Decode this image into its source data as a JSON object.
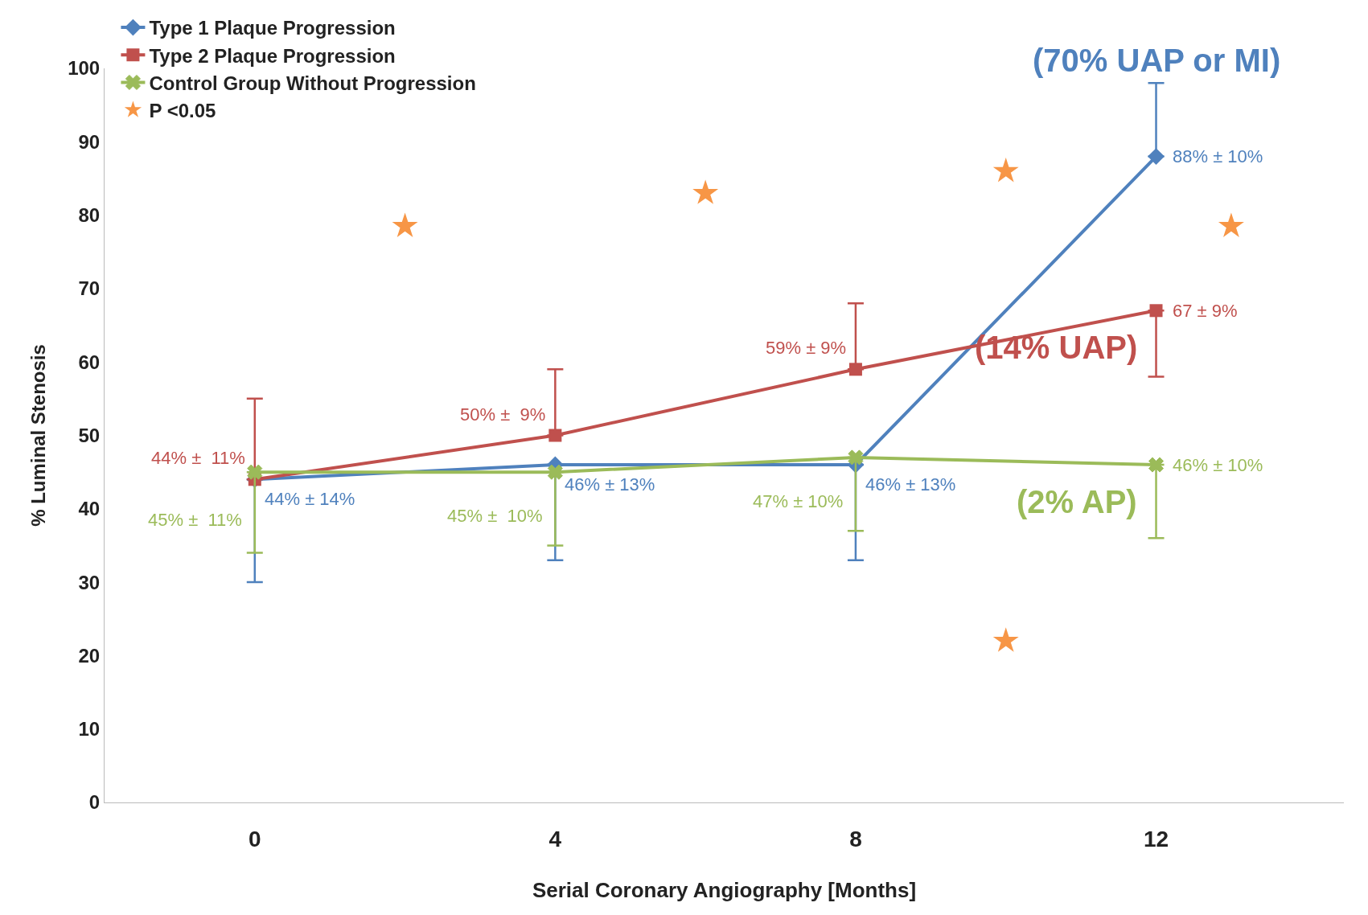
{
  "chart_data": {
    "type": "line",
    "xlabel": "Serial Coronary Angiography [Months]",
    "ylabel": "% Luminal Stenosis",
    "x": [
      0,
      4,
      8,
      12
    ],
    "xlim": [
      -2,
      14.5
    ],
    "xticks": [
      0,
      4,
      8,
      12
    ],
    "ylim": [
      0,
      100
    ],
    "yticks": [
      0,
      10,
      20,
      30,
      40,
      50,
      60,
      70,
      80,
      90,
      100
    ],
    "grid": false,
    "legend": "top left",
    "series": [
      {
        "name": "Type 1 Plaque Progression",
        "color": "#4f81bd",
        "marker": "diamond",
        "values": [
          44,
          46,
          46,
          88
        ],
        "errors": [
          [
            30,
            44
          ],
          [
            33,
            46
          ],
          [
            33,
            46
          ],
          [
            88,
            98
          ]
        ],
        "value_labels": [
          "44% ± 14%",
          "46% ± 13%",
          "46% ± 13%",
          "88% ± 10%"
        ]
      },
      {
        "name": "Type 2 Plaque Progression",
        "color": "#c0504d",
        "marker": "square",
        "values": [
          44,
          50,
          59,
          67
        ],
        "errors": [
          [
            44,
            55
          ],
          [
            50,
            59
          ],
          [
            59,
            68
          ],
          [
            58,
            67
          ]
        ],
        "value_labels": [
          "44% ±  11%",
          "50% ±  9%",
          "59% ± 9%",
          "67 ± 9%"
        ]
      },
      {
        "name": "Control Group Without Progression",
        "color": "#9bbb59",
        "marker": "cross",
        "values": [
          45,
          45,
          47,
          46
        ],
        "errors": [
          [
            34,
            45
          ],
          [
            35,
            45
          ],
          [
            37,
            47
          ],
          [
            36,
            46
          ]
        ],
        "value_labels": [
          "45% ±  11%",
          "45% ±  10%",
          "47% ± 10%",
          "46% ± 10%"
        ]
      },
      {
        "name": "P <0.05",
        "type": "scatter",
        "color": "#f79646",
        "marker": "star",
        "x": [
          2,
          6,
          10,
          13,
          10
        ],
        "values": [
          78.5,
          83,
          86,
          78.5,
          22
        ]
      }
    ],
    "annotations": [
      "(70% UAP or MI)",
      "(14% UAP)",
      "(2% AP)"
    ]
  }
}
